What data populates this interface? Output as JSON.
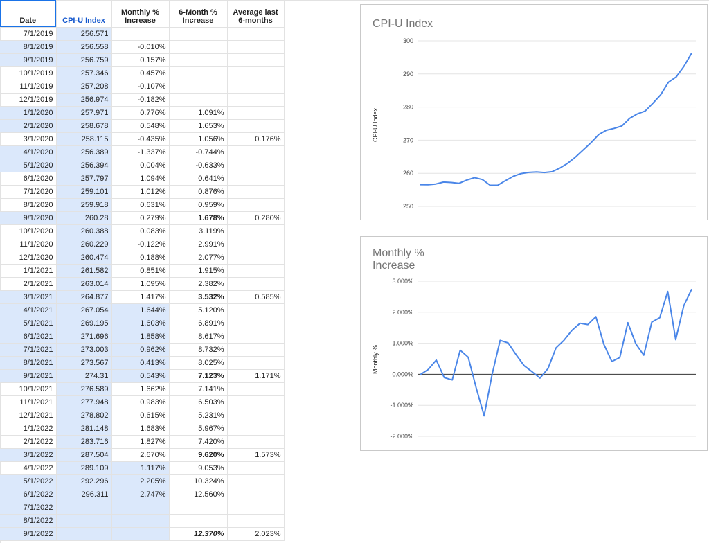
{
  "table": {
    "headers": [
      "Date",
      "CPI-U Index",
      "Monthly % Increase",
      "6-Month % Increase",
      "Average last 6-months"
    ],
    "rows": [
      {
        "date": "7/1/2019",
        "cpi": "256.571",
        "m": "",
        "six": "",
        "avg": "",
        "hl": false
      },
      {
        "date": "8/1/2019",
        "cpi": "256.558",
        "m": "-0.010%",
        "six": "",
        "avg": "",
        "hl": true
      },
      {
        "date": "9/1/2019",
        "cpi": "256.759",
        "m": "0.157%",
        "six": "",
        "avg": "",
        "hl": true
      },
      {
        "date": "10/1/2019",
        "cpi": "257.346",
        "m": "0.457%",
        "six": "",
        "avg": "",
        "hl": false
      },
      {
        "date": "11/1/2019",
        "cpi": "257.208",
        "m": "-0.107%",
        "six": "",
        "avg": "",
        "hl": false
      },
      {
        "date": "12/1/2019",
        "cpi": "256.974",
        "m": "-0.182%",
        "six": "",
        "avg": "",
        "hl": false
      },
      {
        "date": "1/1/2020",
        "cpi": "257.971",
        "m": "0.776%",
        "six": "1.091%",
        "avg": "",
        "hl": true
      },
      {
        "date": "2/1/2020",
        "cpi": "258.678",
        "m": "0.548%",
        "six": "1.653%",
        "avg": "",
        "hl": true
      },
      {
        "date": "3/1/2020",
        "cpi": "258.115",
        "m": "-0.435%",
        "six": "1.056%",
        "avg": "0.176%",
        "hl": false
      },
      {
        "date": "4/1/2020",
        "cpi": "256.389",
        "m": "-1.337%",
        "six": "-0.744%",
        "avg": "",
        "hl": true
      },
      {
        "date": "5/1/2020",
        "cpi": "256.394",
        "m": "0.004%",
        "six": "-0.633%",
        "avg": "",
        "hl": true
      },
      {
        "date": "6/1/2020",
        "cpi": "257.797",
        "m": "1.094%",
        "six": "0.641%",
        "avg": "",
        "hl": false
      },
      {
        "date": "7/1/2020",
        "cpi": "259.101",
        "m": "1.012%",
        "six": "0.876%",
        "avg": "",
        "hl": false
      },
      {
        "date": "8/1/2020",
        "cpi": "259.918",
        "m": "0.631%",
        "six": "0.959%",
        "avg": "",
        "hl": false
      },
      {
        "date": "9/1/2020",
        "cpi": "260.28",
        "m": "0.279%",
        "six": "1.678%",
        "avg": "0.280%",
        "hl": true,
        "bold": true
      },
      {
        "date": "10/1/2020",
        "cpi": "260.388",
        "m": "0.083%",
        "six": "3.119%",
        "avg": "",
        "hl": false
      },
      {
        "date": "11/1/2020",
        "cpi": "260.229",
        "m": "-0.122%",
        "six": "2.991%",
        "avg": "",
        "hl": false
      },
      {
        "date": "12/1/2020",
        "cpi": "260.474",
        "m": "0.188%",
        "six": "2.077%",
        "avg": "",
        "hl": false
      },
      {
        "date": "1/1/2021",
        "cpi": "261.582",
        "m": "0.851%",
        "six": "1.915%",
        "avg": "",
        "hl": false
      },
      {
        "date": "2/1/2021",
        "cpi": "263.014",
        "m": "1.095%",
        "six": "2.382%",
        "avg": "",
        "hl": false
      },
      {
        "date": "3/1/2021",
        "cpi": "264.877",
        "m": "1.417%",
        "six": "3.532%",
        "avg": "0.585%",
        "hl": true,
        "bold": true
      },
      {
        "date": "4/1/2021",
        "cpi": "267.054",
        "m": "1.644%",
        "six": "5.120%",
        "avg": "",
        "hl": true,
        "mhl": true
      },
      {
        "date": "5/1/2021",
        "cpi": "269.195",
        "m": "1.603%",
        "six": "6.891%",
        "avg": "",
        "hl": true,
        "mhl": true
      },
      {
        "date": "6/1/2021",
        "cpi": "271.696",
        "m": "1.858%",
        "six": "8.617%",
        "avg": "",
        "hl": true,
        "mhl": true
      },
      {
        "date": "7/1/2021",
        "cpi": "273.003",
        "m": "0.962%",
        "six": "8.732%",
        "avg": "",
        "hl": true,
        "mhl": true
      },
      {
        "date": "8/1/2021",
        "cpi": "273.567",
        "m": "0.413%",
        "six": "8.025%",
        "avg": "",
        "hl": true,
        "mhl": true
      },
      {
        "date": "9/1/2021",
        "cpi": "274.31",
        "m": "0.543%",
        "six": "7.123%",
        "avg": "1.171%",
        "hl": true,
        "mhl": true,
        "bold": true
      },
      {
        "date": "10/1/2021",
        "cpi": "276.589",
        "m": "1.662%",
        "six": "7.141%",
        "avg": "",
        "hl": false
      },
      {
        "date": "11/1/2021",
        "cpi": "277.948",
        "m": "0.983%",
        "six": "6.503%",
        "avg": "",
        "hl": false
      },
      {
        "date": "12/1/2021",
        "cpi": "278.802",
        "m": "0.615%",
        "six": "5.231%",
        "avg": "",
        "hl": false
      },
      {
        "date": "1/1/2022",
        "cpi": "281.148",
        "m": "1.683%",
        "six": "5.967%",
        "avg": "",
        "hl": false
      },
      {
        "date": "2/1/2022",
        "cpi": "283.716",
        "m": "1.827%",
        "six": "7.420%",
        "avg": "",
        "hl": false
      },
      {
        "date": "3/1/2022",
        "cpi": "287.504",
        "m": "2.670%",
        "six": "9.620%",
        "avg": "1.573%",
        "hl": true,
        "bold": true
      },
      {
        "date": "4/1/2022",
        "cpi": "289.109",
        "m": "1.117%",
        "six": "9.053%",
        "avg": "",
        "hl": false,
        "mhl": true
      },
      {
        "date": "5/1/2022",
        "cpi": "292.296",
        "m": "2.205%",
        "six": "10.324%",
        "avg": "",
        "hl": true,
        "mhl": true
      },
      {
        "date": "6/1/2022",
        "cpi": "296.311",
        "m": "2.747%",
        "six": "12.560%",
        "avg": "",
        "hl": true,
        "mhl": true
      },
      {
        "date": "7/1/2022",
        "cpi": "",
        "m": "",
        "six": "",
        "avg": "",
        "hl": true,
        "mhl": true
      },
      {
        "date": "8/1/2022",
        "cpi": "",
        "m": "",
        "six": "",
        "avg": "",
        "hl": true,
        "mhl": true
      },
      {
        "date": "9/1/2022",
        "cpi": "",
        "m": "",
        "six": "12.370%",
        "avg": "2.023%",
        "hl": true,
        "mhl": true,
        "bold": true,
        "ital": true
      }
    ]
  },
  "chart_data": [
    {
      "type": "line",
      "title": "CPI-U Index",
      "ylabel": "CPI-U Index",
      "xlabel": "",
      "ylim": [
        250,
        300
      ],
      "yticks": [
        "250",
        "260",
        "270",
        "280",
        "290",
        "300"
      ],
      "grid": true,
      "color": "#4a86e8",
      "x": [
        "7/1/2019",
        "8/1/2019",
        "9/1/2019",
        "10/1/2019",
        "11/1/2019",
        "12/1/2019",
        "1/1/2020",
        "2/1/2020",
        "3/1/2020",
        "4/1/2020",
        "5/1/2020",
        "6/1/2020",
        "7/1/2020",
        "8/1/2020",
        "9/1/2020",
        "10/1/2020",
        "11/1/2020",
        "12/1/2020",
        "1/1/2021",
        "2/1/2021",
        "3/1/2021",
        "4/1/2021",
        "5/1/2021",
        "6/1/2021",
        "7/1/2021",
        "8/1/2021",
        "9/1/2021",
        "10/1/2021",
        "11/1/2021",
        "12/1/2021",
        "1/1/2022",
        "2/1/2022",
        "3/1/2022",
        "4/1/2022",
        "5/1/2022",
        "6/1/2022"
      ],
      "values": [
        256.571,
        256.558,
        256.759,
        257.346,
        257.208,
        256.974,
        257.971,
        258.678,
        258.115,
        256.389,
        256.394,
        257.797,
        259.101,
        259.918,
        260.28,
        260.388,
        260.229,
        260.474,
        261.582,
        263.014,
        264.877,
        267.054,
        269.195,
        271.696,
        273.003,
        273.567,
        274.31,
        276.589,
        277.948,
        278.802,
        281.148,
        283.716,
        287.504,
        289.109,
        292.296,
        296.311
      ]
    },
    {
      "type": "line",
      "title": "Monthly % Increase",
      "ylabel": "Monthly %",
      "xlabel": "",
      "ylim": [
        -2,
        3
      ],
      "yticks": [
        "-2.000%",
        "-1.000%",
        "0.000%",
        "1.000%",
        "2.000%",
        "3.000%"
      ],
      "grid": true,
      "color": "#4a86e8",
      "x": [
        "8/1/2019",
        "9/1/2019",
        "10/1/2019",
        "11/1/2019",
        "12/1/2019",
        "1/1/2020",
        "2/1/2020",
        "3/1/2020",
        "4/1/2020",
        "5/1/2020",
        "6/1/2020",
        "7/1/2020",
        "8/1/2020",
        "9/1/2020",
        "10/1/2020",
        "11/1/2020",
        "12/1/2020",
        "1/1/2021",
        "2/1/2021",
        "3/1/2021",
        "4/1/2021",
        "5/1/2021",
        "6/1/2021",
        "7/1/2021",
        "8/1/2021",
        "9/1/2021",
        "10/1/2021",
        "11/1/2021",
        "12/1/2021",
        "1/1/2022",
        "2/1/2022",
        "3/1/2022",
        "4/1/2022",
        "5/1/2022",
        "6/1/2022"
      ],
      "values": [
        -0.01,
        0.157,
        0.457,
        -0.107,
        -0.182,
        0.776,
        0.548,
        -0.435,
        -1.337,
        0.004,
        1.094,
        1.012,
        0.631,
        0.279,
        0.083,
        -0.122,
        0.188,
        0.851,
        1.095,
        1.417,
        1.644,
        1.603,
        1.858,
        0.962,
        0.413,
        0.543,
        1.662,
        0.983,
        0.615,
        1.683,
        1.827,
        2.67,
        1.117,
        2.205,
        2.747
      ]
    }
  ]
}
